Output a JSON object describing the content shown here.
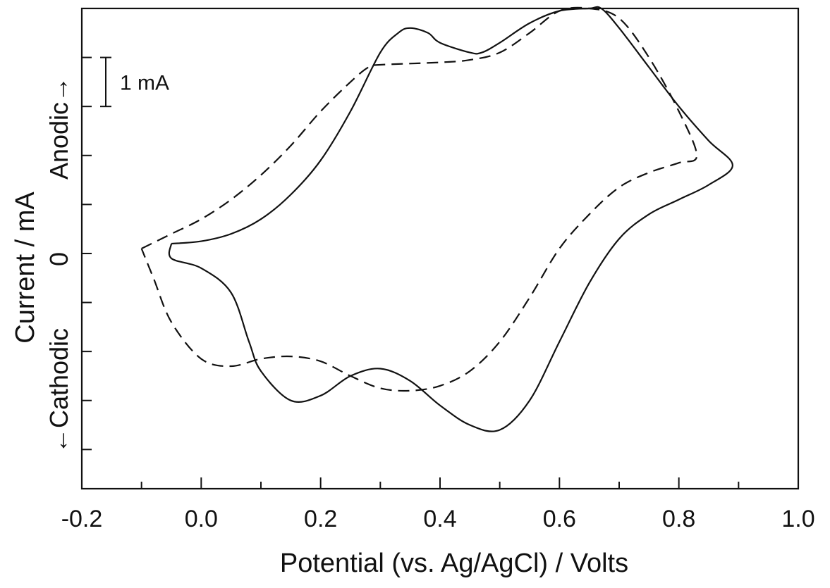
{
  "chart_data": {
    "type": "line",
    "title": "",
    "xlabel": "Potential (vs. Ag/AgCl) / Volts",
    "ylabel": "Current / mA",
    "y_direction_labels": {
      "up": "Anodic",
      "down": "Cathodic",
      "up_arrow": "→",
      "down_arrow": "←"
    },
    "y_zero_label": "0",
    "xlim": [
      -0.2,
      1.0
    ],
    "ylim": [
      -4.8,
      5.0
    ],
    "x_ticks": [
      -0.2,
      0.0,
      0.2,
      0.4,
      0.6,
      0.8,
      1.0
    ],
    "x_tick_labels": [
      "-0.2",
      "0.0",
      "0.2",
      "0.4",
      "0.6",
      "0.8",
      "1.0"
    ],
    "x_minor_ticks": [
      -0.1,
      0.1,
      0.3,
      0.5,
      0.7,
      0.9
    ],
    "y_ticks": [
      -4,
      -3,
      -2,
      -1,
      0,
      1,
      2,
      3,
      4
    ],
    "scale_bar": {
      "label": "1 mA",
      "from": 3,
      "to": 4
    },
    "grid": false,
    "legend": "none",
    "series": [
      {
        "style": "solid",
        "color": "#111111",
        "x": [
          -0.05,
          0.0,
          0.05,
          0.1,
          0.15,
          0.2,
          0.25,
          0.3,
          0.33,
          0.35,
          0.38,
          0.4,
          0.45,
          0.47,
          0.5,
          0.55,
          0.6,
          0.65,
          0.67,
          0.7,
          0.75,
          0.8,
          0.85,
          0.89,
          0.85,
          0.8,
          0.75,
          0.7,
          0.65,
          0.6,
          0.55,
          0.5,
          0.45,
          0.4,
          0.35,
          0.3,
          0.25,
          0.2,
          0.15,
          0.1,
          0.08,
          0.05,
          0.0,
          -0.05,
          -0.05
        ],
        "y": [
          0.2,
          0.25,
          0.4,
          0.7,
          1.2,
          1.9,
          2.9,
          4.1,
          4.5,
          4.6,
          4.5,
          4.3,
          4.1,
          4.1,
          4.3,
          4.7,
          4.95,
          5.0,
          5.0,
          4.6,
          3.8,
          3.0,
          2.3,
          1.8,
          1.4,
          1.1,
          0.8,
          0.3,
          -0.6,
          -1.8,
          -3.0,
          -3.6,
          -3.5,
          -3.1,
          -2.6,
          -2.35,
          -2.5,
          -2.9,
          -3.0,
          -2.4,
          -1.8,
          -0.8,
          -0.3,
          -0.1,
          0.2
        ]
      },
      {
        "style": "dashed",
        "color": "#111111",
        "x": [
          -0.1,
          -0.05,
          0.0,
          0.05,
          0.1,
          0.15,
          0.2,
          0.25,
          0.28,
          0.3,
          0.4,
          0.45,
          0.5,
          0.55,
          0.6,
          0.65,
          0.7,
          0.75,
          0.8,
          0.83,
          0.8,
          0.75,
          0.7,
          0.65,
          0.6,
          0.55,
          0.5,
          0.45,
          0.4,
          0.35,
          0.3,
          0.25,
          0.2,
          0.15,
          0.1,
          0.05,
          0.0,
          -0.05,
          -0.08,
          -0.1
        ],
        "y": [
          0.1,
          0.4,
          0.7,
          1.1,
          1.6,
          2.2,
          2.9,
          3.5,
          3.8,
          3.85,
          3.9,
          3.95,
          4.1,
          4.5,
          4.95,
          5.0,
          4.8,
          4.0,
          2.9,
          2.0,
          1.85,
          1.65,
          1.35,
          0.8,
          0.1,
          -0.9,
          -1.8,
          -2.4,
          -2.7,
          -2.8,
          -2.75,
          -2.5,
          -2.2,
          -2.1,
          -2.15,
          -2.3,
          -2.15,
          -1.4,
          -0.5,
          0.1
        ]
      }
    ]
  }
}
